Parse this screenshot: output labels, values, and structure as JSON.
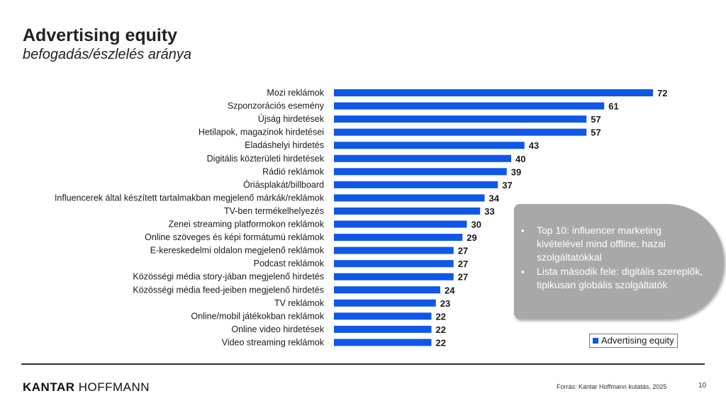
{
  "header": {
    "title": "Advertising equity",
    "subtitle": "befogadás/észlelés aránya"
  },
  "chart_data": {
    "type": "bar",
    "orientation": "horizontal",
    "categories": [
      "Mozi reklámok",
      "Szponzorációs esemény",
      "Újság hirdetések",
      "Hetilapok, magazinok hirdetései",
      "Eladáshelyi hirdetés",
      "Digitális közterületi hirdetések",
      "Rádió reklámok",
      "Óriásplakát/billboard",
      "Influencerek által készített tartalmakban megjelenő márkák/reklámok",
      "TV-ben termékelhelyezés",
      "Zenei streaming platformokon reklámok",
      "Online szöveges és képi formátumú reklámok",
      "E-kereskedelmi oldalon megjelenő reklámok",
      "Podcast reklámok",
      "Közösségi média story-jában megjelenő hirdetés",
      "Közösségi média feed-jeiben megjelenő hirdetés",
      "TV reklámok",
      "Online/mobil játékokban reklámok",
      "Online video hirdetések",
      "Video streaming reklámok"
    ],
    "series": [
      {
        "name": "Advertising equity",
        "color": "#0f57e7",
        "values": [
          72,
          61,
          57,
          57,
          43,
          40,
          39,
          37,
          34,
          33,
          30,
          29,
          27,
          27,
          27,
          24,
          23,
          22,
          22,
          22
        ]
      }
    ],
    "xlim": [
      0,
      100
    ],
    "grid": false,
    "legend": "bottom-right"
  },
  "callout": {
    "bullets": [
      "Top 10: influencer marketing kivételével mind offline, hazai szolgáltatókkal",
      "Lista második fele: digitális szereplők, tipikusan globális szolgáltatók"
    ]
  },
  "legend": {
    "label": "Advertising equity"
  },
  "footer": {
    "logo_part1": "KANTAR",
    "logo_part2": "HOFFMANN",
    "source": "Forrás: Kantar Hoffmann kutatás, 2025",
    "page": "10"
  }
}
